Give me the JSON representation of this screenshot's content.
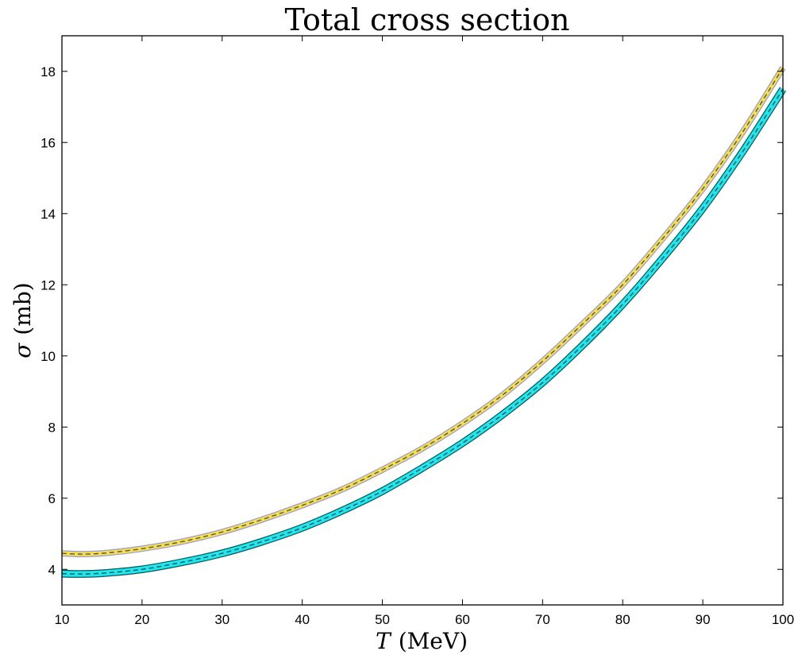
{
  "chart_data": {
    "type": "line",
    "title": "Total cross section",
    "xlabel": "T (MeV)",
    "xlabel_var": "T",
    "xlabel_unit": "(MeV)",
    "ylabel": "σ (mb)",
    "ylabel_var": "σ",
    "ylabel_unit": "(mb)",
    "xlim": [
      10,
      100
    ],
    "ylim": [
      3,
      19
    ],
    "xticks": [
      10,
      20,
      30,
      40,
      50,
      60,
      70,
      80,
      90,
      100
    ],
    "yticks": [
      4,
      6,
      8,
      10,
      12,
      14,
      16,
      18
    ],
    "grid": false,
    "series": [
      {
        "color": "#f5e04a",
        "band_edge_color": "#9a9ae0",
        "center_color": "#555555",
        "band_halfwidth": 0.06,
        "x": [
          10,
          12,
          15,
          20,
          25,
          30,
          35,
          40,
          45,
          50,
          55,
          60,
          65,
          70,
          75,
          80,
          85,
          90,
          95,
          100
        ],
        "y": [
          4.45,
          4.43,
          4.45,
          4.58,
          4.78,
          5.05,
          5.4,
          5.8,
          6.25,
          6.8,
          7.4,
          8.1,
          8.9,
          9.85,
          10.9,
          12.0,
          13.3,
          14.7,
          16.3,
          18.1
        ]
      },
      {
        "color": "#22e6ee",
        "band_edge_color": "#0a5a5a",
        "center_color": "#0a5a5a",
        "band_halfwidth": 0.08,
        "x": [
          10,
          12,
          15,
          20,
          25,
          30,
          35,
          40,
          45,
          50,
          55,
          60,
          65,
          70,
          75,
          80,
          85,
          90,
          95,
          100
        ],
        "y": [
          3.88,
          3.87,
          3.89,
          4.0,
          4.2,
          4.45,
          4.78,
          5.17,
          5.65,
          6.2,
          6.85,
          7.55,
          8.35,
          9.25,
          10.3,
          11.45,
          12.75,
          14.15,
          15.75,
          17.5
        ]
      }
    ]
  }
}
